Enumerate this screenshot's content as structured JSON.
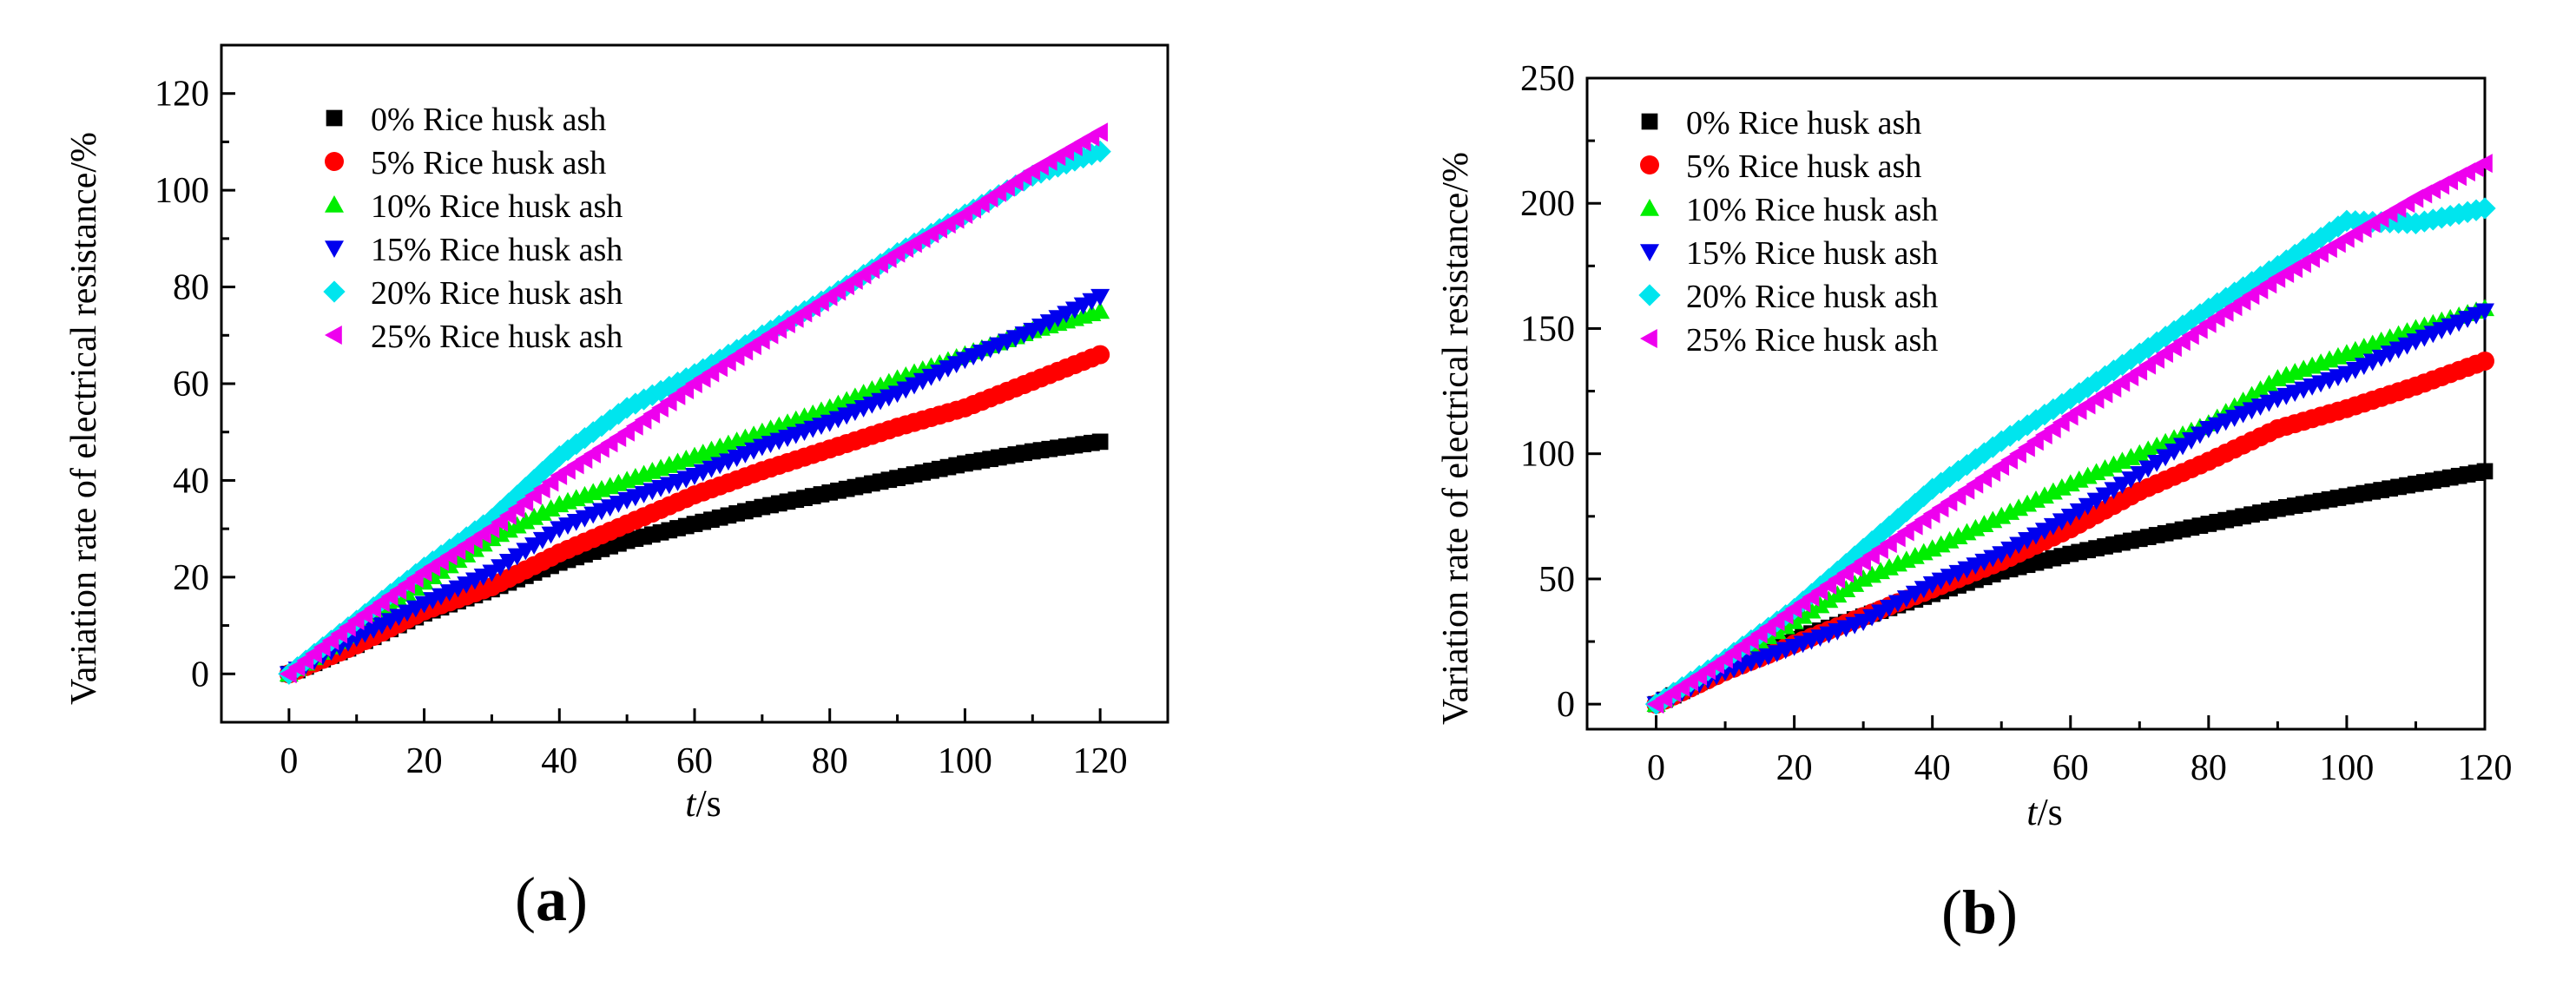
{
  "chart_data": [
    {
      "panel_label": "a",
      "type": "scatter",
      "xlabel_italic": "t",
      "xlabel_unit": "/s",
      "ylabel": "Variation rate of electrical resistance/%",
      "xlim": [
        -10,
        130
      ],
      "ylim": [
        -10,
        130
      ],
      "xticks": [
        0,
        20,
        40,
        60,
        80,
        100,
        120
      ],
      "yticks": [
        0,
        20,
        40,
        60,
        80,
        100,
        120
      ],
      "legend_position": "top-left",
      "series": [
        {
          "name": "0% Rice husk ash",
          "color": "#000000",
          "marker": "square",
          "points": [
            [
              0,
              0
            ],
            [
              10,
              6
            ],
            [
              20,
              12.5
            ],
            [
              30,
              17.5
            ],
            [
              40,
              23
            ],
            [
              50,
              27.5
            ],
            [
              60,
              31
            ],
            [
              70,
              34.5
            ],
            [
              80,
              37.5
            ],
            [
              90,
              40.5
            ],
            [
              100,
              43.5
            ],
            [
              110,
              46
            ],
            [
              120,
              48
            ]
          ]
        },
        {
          "name": "5% Rice husk ash",
          "color": "#ff0000",
          "marker": "circle",
          "points": [
            [
              0,
              0
            ],
            [
              10,
              6
            ],
            [
              20,
              13
            ],
            [
              30,
              18
            ],
            [
              40,
              25
            ],
            [
              50,
              31
            ],
            [
              60,
              37
            ],
            [
              70,
              42
            ],
            [
              80,
              46.5
            ],
            [
              90,
              51
            ],
            [
              100,
              55
            ],
            [
              110,
              60.5
            ],
            [
              120,
              66
            ]
          ]
        },
        {
          "name": "10% Rice husk ash",
          "color": "#00ee00",
          "marker": "triangle-up",
          "points": [
            [
              0,
              0
            ],
            [
              10,
              9
            ],
            [
              20,
              19
            ],
            [
              30,
              28
            ],
            [
              40,
              35
            ],
            [
              50,
              40
            ],
            [
              60,
              45
            ],
            [
              70,
              50
            ],
            [
              80,
              55
            ],
            [
              90,
              61
            ],
            [
              100,
              66
            ],
            [
              110,
              71
            ],
            [
              120,
              75
            ]
          ]
        },
        {
          "name": "15% Rice husk ash",
          "color": "#0000ee",
          "marker": "triangle-down",
          "points": [
            [
              0,
              0
            ],
            [
              10,
              7.5
            ],
            [
              20,
              14.5
            ],
            [
              30,
              21
            ],
            [
              40,
              30
            ],
            [
              50,
              36
            ],
            [
              60,
              41
            ],
            [
              70,
              47
            ],
            [
              80,
              52
            ],
            [
              90,
              58
            ],
            [
              100,
              65
            ],
            [
              110,
              71
            ],
            [
              120,
              78
            ]
          ]
        },
        {
          "name": "20% Rice husk ash",
          "color": "#00e5ee",
          "marker": "diamond",
          "points": [
            [
              0,
              0
            ],
            [
              10,
              11
            ],
            [
              20,
              22
            ],
            [
              30,
              32
            ],
            [
              40,
              45
            ],
            [
              50,
              55
            ],
            [
              60,
              62
            ],
            [
              70,
              70
            ],
            [
              80,
              78
            ],
            [
              90,
              87
            ],
            [
              100,
              95
            ],
            [
              110,
              103
            ],
            [
              120,
              108
            ]
          ]
        },
        {
          "name": "25% Rice husk ash",
          "color": "#ee00ee",
          "marker": "triangle-left",
          "points": [
            [
              0,
              0
            ],
            [
              10,
              11
            ],
            [
              20,
              21
            ],
            [
              30,
              30
            ],
            [
              40,
              41
            ],
            [
              50,
              50
            ],
            [
              60,
              60
            ],
            [
              70,
              69
            ],
            [
              80,
              78
            ],
            [
              90,
              87
            ],
            [
              100,
              95
            ],
            [
              110,
              104
            ],
            [
              120,
              112
            ]
          ]
        }
      ]
    },
    {
      "panel_label": "b",
      "type": "scatter",
      "xlabel_italic": "t",
      "xlabel_unit": "/s",
      "ylabel": "Variation rate of electrical resistance/%",
      "xlim": [
        -10,
        120
      ],
      "ylim": [
        -10,
        250
      ],
      "xticks": [
        0,
        20,
        40,
        60,
        80,
        100,
        120
      ],
      "yticks": [
        0,
        50,
        100,
        150,
        200,
        250
      ],
      "legend_position": "top-left",
      "series": [
        {
          "name": "0% Rice husk ash",
          "color": "#000000",
          "marker": "square",
          "points": [
            [
              0,
              0
            ],
            [
              10,
              14
            ],
            [
              20,
              26
            ],
            [
              30,
              35
            ],
            [
              40,
              44
            ],
            [
              50,
              53
            ],
            [
              60,
              60
            ],
            [
              70,
              66
            ],
            [
              80,
              72
            ],
            [
              90,
              78
            ],
            [
              100,
              83
            ],
            [
              110,
              88
            ],
            [
              120,
              93
            ]
          ]
        },
        {
          "name": "5% Rice husk ash",
          "color": "#ff0000",
          "marker": "circle",
          "points": [
            [
              0,
              0
            ],
            [
              10,
              13
            ],
            [
              20,
              24
            ],
            [
              30,
              35
            ],
            [
              40,
              46
            ],
            [
              50,
              57
            ],
            [
              60,
              70
            ],
            [
              70,
              85
            ],
            [
              80,
              97
            ],
            [
              90,
              110
            ],
            [
              100,
              118
            ],
            [
              110,
              127
            ],
            [
              120,
              137
            ]
          ]
        },
        {
          "name": "10% Rice husk ash",
          "color": "#00ee00",
          "marker": "triangle-up",
          "points": [
            [
              0,
              0
            ],
            [
              10,
              17
            ],
            [
              20,
              33
            ],
            [
              30,
              50
            ],
            [
              40,
              62
            ],
            [
              50,
              75
            ],
            [
              60,
              88
            ],
            [
              70,
              100
            ],
            [
              80,
              112
            ],
            [
              90,
              130
            ],
            [
              100,
              140
            ],
            [
              110,
              150
            ],
            [
              120,
              158
            ]
          ]
        },
        {
          "name": "15% Rice husk ash",
          "color": "#0000ee",
          "marker": "triangle-down",
          "points": [
            [
              0,
              0
            ],
            [
              10,
              13
            ],
            [
              20,
              23
            ],
            [
              30,
              33
            ],
            [
              40,
              48
            ],
            [
              50,
              60
            ],
            [
              60,
              75
            ],
            [
              70,
              92
            ],
            [
              80,
              110
            ],
            [
              90,
              122
            ],
            [
              100,
              132
            ],
            [
              110,
              145
            ],
            [
              120,
              157
            ]
          ]
        },
        {
          "name": "20% Rice husk ash",
          "color": "#00e5ee",
          "marker": "diamond",
          "points": [
            [
              0,
              0
            ],
            [
              10,
              18
            ],
            [
              20,
              38
            ],
            [
              30,
              62
            ],
            [
              40,
              86
            ],
            [
              50,
              105
            ],
            [
              60,
              122
            ],
            [
              70,
              140
            ],
            [
              80,
              158
            ],
            [
              90,
              175
            ],
            [
              100,
              193
            ],
            [
              110,
              192
            ],
            [
              120,
              198
            ]
          ]
        },
        {
          "name": "25% Rice husk ash",
          "color": "#ee00ee",
          "marker": "triangle-left",
          "points": [
            [
              0,
              0
            ],
            [
              10,
              18
            ],
            [
              20,
              38
            ],
            [
              30,
              57
            ],
            [
              40,
              76
            ],
            [
              50,
              95
            ],
            [
              60,
              115
            ],
            [
              70,
              133
            ],
            [
              80,
              152
            ],
            [
              90,
              170
            ],
            [
              100,
              186
            ],
            [
              110,
              202
            ],
            [
              120,
              216
            ]
          ]
        }
      ]
    }
  ]
}
